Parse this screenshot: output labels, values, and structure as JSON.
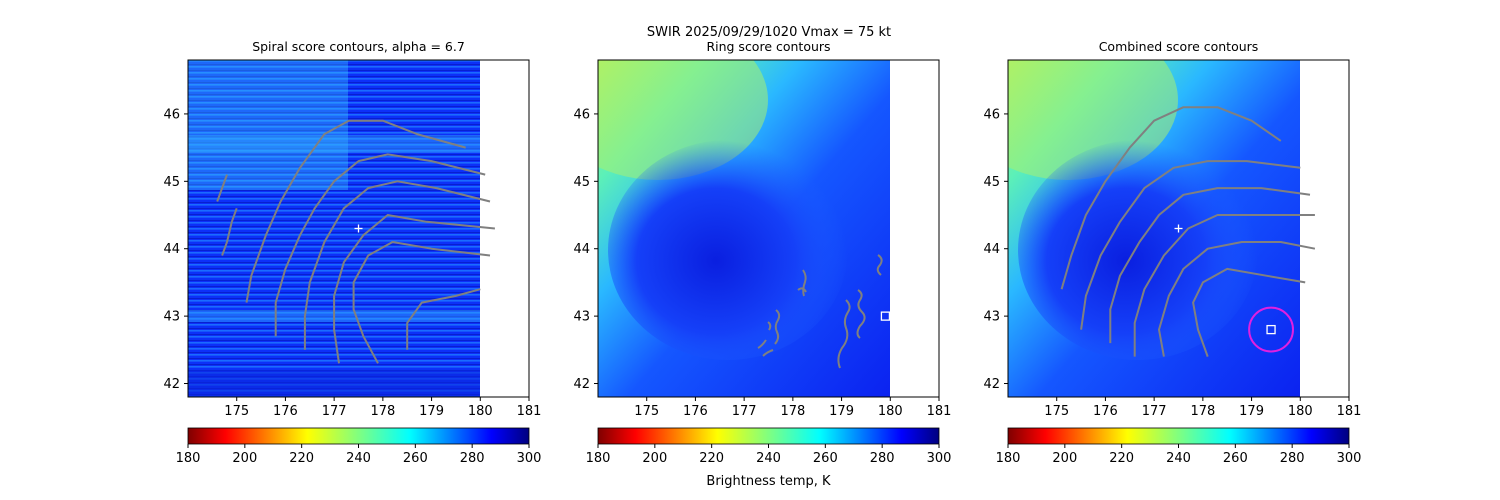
{
  "suptitle": {
    "line1": "SWIR  2025/09/29/1020    Vmax = 75 kt"
  },
  "colorbar_label": "Brightness temp, K",
  "colormap": "jet",
  "colorbar_range": [
    180,
    300
  ],
  "colorbar_ticks": [
    "180",
    "200",
    "220",
    "240",
    "260",
    "280",
    "300"
  ],
  "x_ticks": [
    "175",
    "176",
    "177",
    "178",
    "179",
    "180",
    "181"
  ],
  "y_ticks": [
    "42",
    "43",
    "44",
    "45",
    "46"
  ],
  "contour_color": "#808080",
  "marker_colors": {
    "center_plus": "#ffffff",
    "best_square": "#ffffff",
    "best_circle": "#e020e0"
  },
  "chart_data": [
    {
      "type": "heatmap",
      "title": "Spiral score contours, alpha =  6.7",
      "xlim": [
        174,
        181
      ],
      "ylim": [
        41.8,
        46.8
      ],
      "data_extent_x": [
        174,
        180
      ],
      "center_marker": {
        "x": 177.5,
        "y": 44.3
      },
      "contours": [
        [
          [
            175.0,
            44.6
          ],
          [
            174.9,
            44.4
          ],
          [
            174.8,
            44.1
          ],
          [
            174.7,
            43.9
          ]
        ],
        [
          [
            174.8,
            45.1
          ],
          [
            174.7,
            44.9
          ],
          [
            174.6,
            44.7
          ]
        ],
        [
          [
            175.2,
            43.2
          ],
          [
            175.3,
            43.6
          ],
          [
            175.6,
            44.2
          ],
          [
            175.9,
            44.7
          ],
          [
            176.3,
            45.2
          ],
          [
            176.8,
            45.7
          ],
          [
            177.3,
            45.9
          ],
          [
            178.0,
            45.9
          ],
          [
            178.7,
            45.7
          ],
          [
            179.7,
            45.5
          ]
        ],
        [
          [
            175.8,
            42.7
          ],
          [
            175.8,
            43.2
          ],
          [
            176.0,
            43.7
          ],
          [
            176.3,
            44.2
          ],
          [
            176.6,
            44.6
          ],
          [
            177.0,
            45.0
          ],
          [
            177.5,
            45.3
          ],
          [
            178.1,
            45.4
          ],
          [
            179.0,
            45.3
          ],
          [
            180.1,
            45.1
          ]
        ],
        [
          [
            176.4,
            42.5
          ],
          [
            176.4,
            43.0
          ],
          [
            176.5,
            43.5
          ],
          [
            176.8,
            44.1
          ],
          [
            177.2,
            44.6
          ],
          [
            177.7,
            44.9
          ],
          [
            178.3,
            45.0
          ],
          [
            179.1,
            44.9
          ],
          [
            180.2,
            44.7
          ]
        ],
        [
          [
            177.1,
            42.3
          ],
          [
            177.0,
            42.8
          ],
          [
            177.0,
            43.3
          ],
          [
            177.2,
            43.8
          ],
          [
            177.6,
            44.2
          ],
          [
            178.1,
            44.5
          ],
          [
            178.9,
            44.4
          ],
          [
            180.3,
            44.3
          ]
        ],
        [
          [
            177.9,
            42.3
          ],
          [
            177.6,
            42.7
          ],
          [
            177.4,
            43.1
          ],
          [
            177.4,
            43.5
          ],
          [
            177.7,
            43.9
          ],
          [
            178.2,
            44.1
          ],
          [
            179.0,
            44.0
          ],
          [
            180.2,
            43.9
          ]
        ],
        [
          [
            178.5,
            42.5
          ],
          [
            178.5,
            42.9
          ],
          [
            178.8,
            43.2
          ],
          [
            179.5,
            43.3
          ],
          [
            180.0,
            43.4
          ]
        ]
      ]
    },
    {
      "type": "heatmap",
      "title": "Ring score contours",
      "xlim": [
        174,
        181
      ],
      "ylim": [
        41.8,
        46.8
      ],
      "data_extent_x": [
        174,
        180
      ],
      "best_square": {
        "x": 179.9,
        "y": 43.0
      }
    },
    {
      "type": "heatmap",
      "title": "Combined score contours",
      "xlim": [
        174,
        181
      ],
      "ylim": [
        41.8,
        46.8
      ],
      "data_extent_x": [
        174,
        180
      ],
      "center_marker": {
        "x": 177.5,
        "y": 44.3
      },
      "best_square": {
        "x": 179.4,
        "y": 42.8
      },
      "best_circle": {
        "x": 179.4,
        "y": 42.8,
        "r": 0.45
      },
      "contours": [
        [
          [
            175.1,
            43.4
          ],
          [
            175.3,
            43.9
          ],
          [
            175.6,
            44.5
          ],
          [
            176.0,
            45.0
          ],
          [
            176.5,
            45.5
          ],
          [
            177.0,
            45.9
          ],
          [
            177.6,
            46.1
          ],
          [
            178.3,
            46.1
          ],
          [
            179.0,
            45.9
          ],
          [
            179.6,
            45.6
          ]
        ],
        [
          [
            175.5,
            42.8
          ],
          [
            175.6,
            43.3
          ],
          [
            175.9,
            43.9
          ],
          [
            176.3,
            44.4
          ],
          [
            176.8,
            44.9
          ],
          [
            177.4,
            45.2
          ],
          [
            178.1,
            45.3
          ],
          [
            178.9,
            45.3
          ],
          [
            180.0,
            45.2
          ]
        ],
        [
          [
            176.1,
            42.6
          ],
          [
            176.1,
            43.1
          ],
          [
            176.3,
            43.6
          ],
          [
            176.7,
            44.1
          ],
          [
            177.1,
            44.5
          ],
          [
            177.6,
            44.8
          ],
          [
            178.3,
            44.9
          ],
          [
            179.2,
            44.9
          ],
          [
            180.2,
            44.8
          ]
        ],
        [
          [
            176.6,
            42.4
          ],
          [
            176.6,
            42.9
          ],
          [
            176.8,
            43.4
          ],
          [
            177.2,
            43.9
          ],
          [
            177.7,
            44.3
          ],
          [
            178.3,
            44.5
          ],
          [
            179.2,
            44.5
          ],
          [
            180.3,
            44.5
          ]
        ],
        [
          [
            177.2,
            42.4
          ],
          [
            177.1,
            42.8
          ],
          [
            177.3,
            43.3
          ],
          [
            177.6,
            43.7
          ],
          [
            178.1,
            44.0
          ],
          [
            178.8,
            44.1
          ],
          [
            179.6,
            44.1
          ],
          [
            180.3,
            44.0
          ]
        ],
        [
          [
            178.1,
            42.4
          ],
          [
            177.9,
            42.8
          ],
          [
            177.8,
            43.2
          ],
          [
            178.0,
            43.5
          ],
          [
            178.5,
            43.7
          ],
          [
            179.3,
            43.6
          ],
          [
            180.1,
            43.5
          ]
        ]
      ]
    }
  ]
}
